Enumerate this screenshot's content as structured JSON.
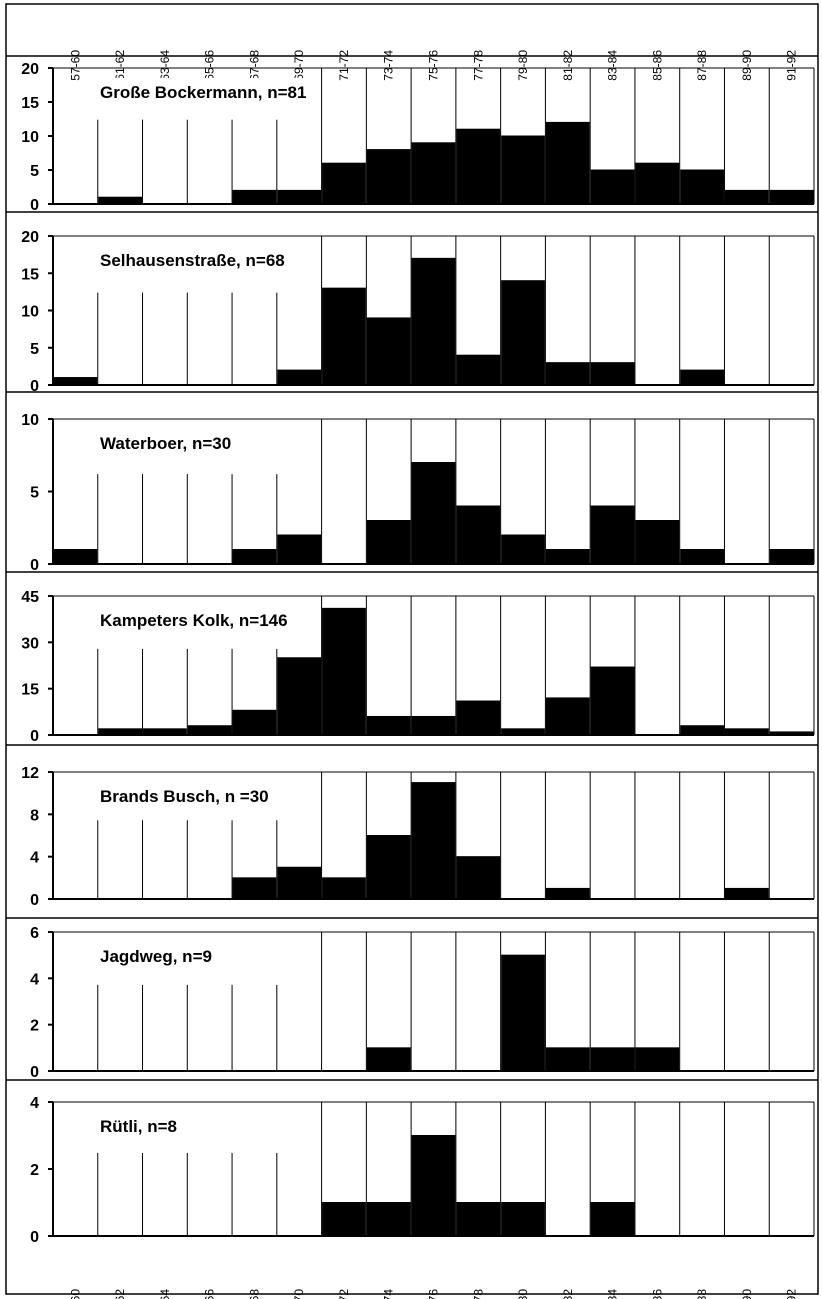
{
  "chart_data": {
    "type": "bar",
    "categories": [
      "57-60",
      "61-62",
      "63-64",
      "65-66",
      "67-68",
      "69-70",
      "71-72",
      "73-74",
      "75-76",
      "77-78",
      "79-80",
      "81-82",
      "83-84",
      "85-86",
      "87-88",
      "89-90",
      "91-92"
    ],
    "panels": [
      {
        "title": "Große Bockermann, n=81",
        "ylim": [
          0,
          20
        ],
        "yticks": [
          0,
          5,
          10,
          15,
          20
        ],
        "values": [
          0,
          1,
          0,
          0,
          2,
          2,
          6,
          8,
          9,
          11,
          10,
          12,
          5,
          6,
          5,
          2,
          2
        ]
      },
      {
        "title": "Selhausenstraße, n=68",
        "ylim": [
          0,
          20
        ],
        "yticks": [
          0,
          5,
          10,
          15,
          20
        ],
        "values": [
          1,
          0,
          0,
          0,
          0,
          2,
          13,
          9,
          17,
          4,
          14,
          3,
          3,
          0,
          2,
          0,
          0
        ]
      },
      {
        "title": "Waterboer, n=30",
        "ylim": [
          0,
          10
        ],
        "yticks": [
          0,
          5,
          10
        ],
        "values": [
          1,
          0,
          0,
          0,
          1,
          2,
          0,
          3,
          7,
          4,
          2,
          1,
          4,
          3,
          1,
          0,
          1
        ]
      },
      {
        "title": "Kampeters Kolk, n=146",
        "ylim": [
          0,
          45
        ],
        "yticks": [
          0,
          15,
          30,
          45
        ],
        "values": [
          0,
          2,
          2,
          3,
          8,
          25,
          41,
          6,
          6,
          11,
          2,
          12,
          22,
          0,
          3,
          2,
          1
        ]
      },
      {
        "title": "Brands Busch, n =30",
        "ylim": [
          0,
          12
        ],
        "yticks": [
          0,
          4,
          8,
          12
        ],
        "values": [
          0,
          0,
          0,
          0,
          2,
          3,
          2,
          6,
          11,
          4,
          0,
          1,
          0,
          0,
          0,
          1,
          0
        ]
      },
      {
        "title": "Jagdweg, n=9",
        "ylim": [
          0,
          6
        ],
        "yticks": [
          0,
          2,
          4,
          6
        ],
        "values": [
          0,
          0,
          0,
          0,
          0,
          0,
          0,
          1,
          0,
          0,
          5,
          1,
          1,
          1,
          0,
          0,
          0
        ]
      },
      {
        "title": "Rütli, n=8",
        "ylim": [
          0,
          4
        ],
        "yticks": [
          0,
          2,
          4
        ],
        "values": [
          0,
          0,
          0,
          0,
          0,
          0,
          1,
          1,
          3,
          1,
          1,
          0,
          1,
          0,
          0,
          0,
          0
        ]
      }
    ],
    "grid": true,
    "legend": "none",
    "xlabel": "",
    "ylabel": ""
  }
}
